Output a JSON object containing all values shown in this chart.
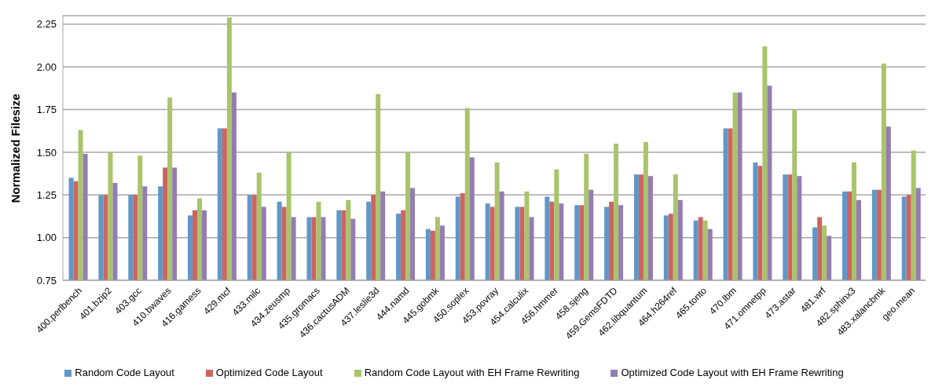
{
  "chart_data": {
    "type": "bar",
    "ylabel": "Normalized Filesize",
    "categories": [
      "400.perlbench",
      "401.bzip2",
      "403.gcc",
      "410.bwaves",
      "416.gamess",
      "429.mcf",
      "433.milc",
      "434.zeusmp",
      "435.gromacs",
      "436.cactusADM",
      "437.leslie3d",
      "444.namd",
      "445.gobmk",
      "450.soplex",
      "453.povray",
      "454.calculix",
      "456.hmmer",
      "458.sjeng",
      "459.GemsFDTD",
      "462.libquantum",
      "464.h264ref",
      "465.tonto",
      "470.lbm",
      "471.omnetpp",
      "473.astar",
      "481.wrf",
      "482.sphinx3",
      "483.xalancbmk",
      "geo.mean"
    ],
    "series": [
      {
        "name": "Random Code Layout",
        "color": "#6097c9",
        "values": [
          1.35,
          1.25,
          1.25,
          1.3,
          1.13,
          1.64,
          1.25,
          1.21,
          1.12,
          1.16,
          1.21,
          1.14,
          1.05,
          1.24,
          1.2,
          1.18,
          1.24,
          1.19,
          1.18,
          1.37,
          1.13,
          1.1,
          1.64,
          1.44,
          1.37,
          1.06,
          1.27,
          1.28,
          1.24
        ]
      },
      {
        "name": "Optimized Code Layout",
        "color": "#cc655f",
        "values": [
          1.33,
          1.25,
          1.25,
          1.41,
          1.16,
          1.64,
          1.25,
          1.18,
          1.12,
          1.16,
          1.25,
          1.16,
          1.04,
          1.26,
          1.18,
          1.18,
          1.21,
          1.19,
          1.21,
          1.37,
          1.14,
          1.12,
          1.64,
          1.42,
          1.37,
          1.12,
          1.27,
          1.28,
          1.25
        ]
      },
      {
        "name": "Random Code Layout with EH Frame Rewriting",
        "color": "#a9c46a",
        "values": [
          1.63,
          1.5,
          1.48,
          1.82,
          1.23,
          2.29,
          1.38,
          1.5,
          1.21,
          1.22,
          1.84,
          1.5,
          1.12,
          1.76,
          1.44,
          1.27,
          1.4,
          1.49,
          1.55,
          1.56,
          1.37,
          1.1,
          1.85,
          2.12,
          1.75,
          1.07,
          1.44,
          2.02,
          1.51
        ]
      },
      {
        "name": "Optimized Code Layout with EH Frame Rewriting",
        "color": "#937db2",
        "values": [
          1.49,
          1.32,
          1.3,
          1.41,
          1.16,
          1.85,
          1.18,
          1.12,
          1.12,
          1.11,
          1.27,
          1.29,
          1.07,
          1.47,
          1.27,
          1.12,
          1.2,
          1.28,
          1.19,
          1.36,
          1.22,
          1.05,
          1.85,
          1.89,
          1.36,
          1.01,
          1.22,
          1.65,
          1.29
        ]
      }
    ],
    "ylim": [
      0.75,
      2.3
    ],
    "yticks": [
      {
        "value": 0.75,
        "label": "0.75"
      },
      {
        "value": 1,
        "label": "1.00"
      },
      {
        "value": 1.25,
        "label": "1.25"
      },
      {
        "value": 1.5,
        "label": "1.50"
      },
      {
        "value": 1.75,
        "label": "1.75"
      },
      {
        "value": 2,
        "label": "2.00"
      },
      {
        "value": 2.25,
        "label": "2.25"
      }
    ],
    "grid": "y",
    "legend": "bottom"
  }
}
